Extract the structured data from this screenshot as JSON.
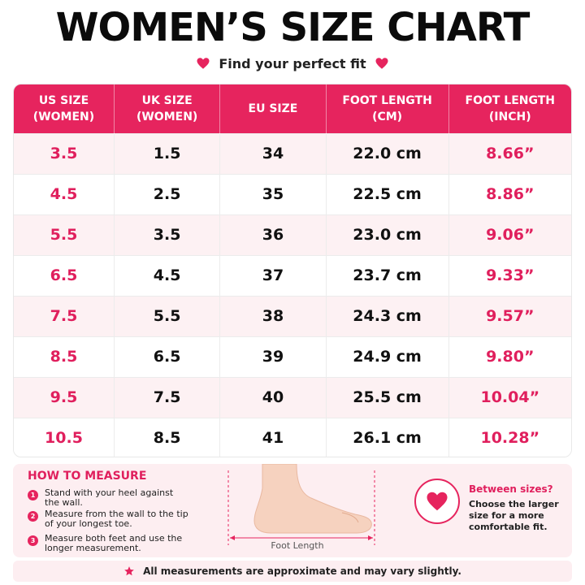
{
  "header": {
    "title": "WOMEN’S SIZE CHART",
    "subtitle": "Find your perfect fit"
  },
  "table": {
    "columns": [
      {
        "line1": "US SIZE",
        "line2": "(WOMEN)"
      },
      {
        "line1": "UK SIZE",
        "line2": "(WOMEN)"
      },
      {
        "line1": "EU SIZE",
        "line2": ""
      },
      {
        "line1": "FOOT LENGTH",
        "line2": "(CM)"
      },
      {
        "line1": "FOOT LENGTH",
        "line2": "(INCH)"
      }
    ],
    "rows": [
      [
        "3.5",
        "1.5",
        "34",
        "22.0 cm",
        "8.66”"
      ],
      [
        "4.5",
        "2.5",
        "35",
        "22.5 cm",
        "8.86”"
      ],
      [
        "5.5",
        "3.5",
        "36",
        "23.0 cm",
        "9.06”"
      ],
      [
        "6.5",
        "4.5",
        "37",
        "23.7 cm",
        "9.33”"
      ],
      [
        "7.5",
        "5.5",
        "38",
        "24.3 cm",
        "9.57”"
      ],
      [
        "8.5",
        "6.5",
        "39",
        "24.9 cm",
        "9.80”"
      ],
      [
        "9.5",
        "7.5",
        "40",
        "25.5 cm",
        "10.04”"
      ],
      [
        "10.5",
        "8.5",
        "41",
        "26.1 cm",
        "10.28”"
      ]
    ]
  },
  "how_to_measure": {
    "title": "HOW TO MEASURE",
    "steps": [
      {
        "num": "1",
        "text": "Stand with your heel against the wall."
      },
      {
        "num": "2",
        "text": "Measure from the wall to the tip of your longest toe."
      },
      {
        "num": "3",
        "text": "Measure both feet and use the longer measurement."
      }
    ],
    "diagram_label": "Foot Length"
  },
  "between_sizes": {
    "title": "Between sizes?",
    "text": "Choose the larger size for a more comfortable fit."
  },
  "footnote": "All measurements are approximate and may vary slightly.",
  "colors": {
    "accent": "#e6245e",
    "row_tint": "#fdf1f3",
    "panel_bg": "#fdeef1"
  },
  "icons": [
    "heart-icon",
    "foot-illustration",
    "star-icon"
  ]
}
